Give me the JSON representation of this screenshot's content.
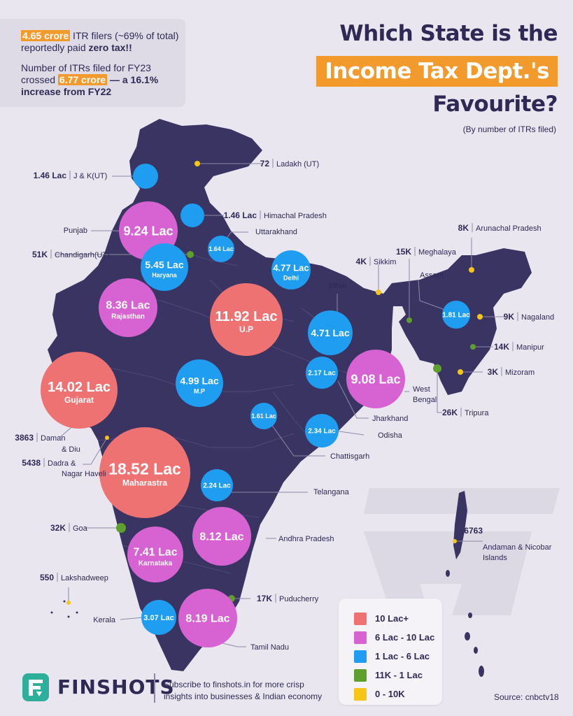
{
  "header": {
    "title_line1": "Which State is the",
    "title_line2": "Income Tax Dept.'s",
    "title_line3": "Favourite?",
    "subtitle": "(By number of ITRs filed)"
  },
  "info": {
    "fact1_highlight": "4.65 crore",
    "fact1_rest": " ITR filers (~69% of total)",
    "fact1_line2_prefix": "reportedly paid ",
    "fact1_line2_bold": "zero tax!!",
    "fact2_line1": "Number of ITRs filed for FY23",
    "fact2_line2_prefix": "crossed ",
    "fact2_highlight": "6.77 crore",
    "fact2_line2_suffix": " — a 16.1%",
    "fact2_line3": "increase from FY22"
  },
  "colors": {
    "cat1": "#ef7272",
    "cat2": "#d763d2",
    "cat3": "#1f9df0",
    "cat4": "#5e9f2e",
    "cat5": "#f5c518",
    "map": "#3a3462",
    "accent": "#f39a2c"
  },
  "legend": [
    {
      "label": "10 Lac+",
      "color": "#ef7272"
    },
    {
      "label": "6 Lac - 10 Lac",
      "color": "#d763d2"
    },
    {
      "label": "1 Lac - 6 Lac",
      "color": "#1f9df0"
    },
    {
      "label": "11K - 1 Lac",
      "color": "#5e9f2e"
    },
    {
      "label": "0 - 10K",
      "color": "#f5c518"
    }
  ],
  "bubbles": [
    {
      "value": "18.52 Lac",
      "name": "Maharastra",
      "color": "#ef7272"
    },
    {
      "value": "14.02 Lac",
      "name": "Gujarat",
      "color": "#ef7272"
    },
    {
      "value": "11.92 Lac",
      "name": "U.P",
      "color": "#ef7272"
    },
    {
      "value": "9.24 Lac",
      "name": "",
      "color": "#d763d2"
    },
    {
      "value": "9.08 Lac",
      "name": "",
      "color": "#d763d2"
    },
    {
      "value": "8.36 Lac",
      "name": "Rajasthan",
      "color": "#d763d2"
    },
    {
      "value": "8.19 Lac",
      "name": "",
      "color": "#d763d2"
    },
    {
      "value": "8.12 Lac",
      "name": "",
      "color": "#d763d2"
    },
    {
      "value": "7.41 Lac",
      "name": "Karnataka",
      "color": "#d763d2"
    },
    {
      "value": "5.45 Lac",
      "name": "Haryana",
      "color": "#1f9df0"
    },
    {
      "value": "4.99 Lac",
      "name": "M.P",
      "color": "#1f9df0"
    },
    {
      "value": "4.77 Lac",
      "name": "Delhi",
      "color": "#1f9df0"
    },
    {
      "value": "4.71 Lac",
      "name": "",
      "color": "#1f9df0"
    },
    {
      "value": "3.07 Lac",
      "name": "",
      "color": "#1f9df0"
    },
    {
      "value": "2.34 Lac",
      "name": "",
      "color": "#1f9df0"
    },
    {
      "value": "2.24 Lac",
      "name": "",
      "color": "#1f9df0"
    },
    {
      "value": "2.17 Lac",
      "name": "",
      "color": "#1f9df0"
    },
    {
      "value": "1.81 Lac",
      "name": "",
      "color": "#1f9df0"
    },
    {
      "value": "1.64 Lac",
      "name": "",
      "color": "#1f9df0"
    },
    {
      "value": "1.61 Lac",
      "name": "",
      "color": "#1f9df0"
    },
    {
      "value": "",
      "name": "",
      "color": "#1f9df0"
    },
    {
      "value": "",
      "name": "",
      "color": "#1f9df0"
    }
  ],
  "dots": [
    {
      "color": "#f5c518"
    },
    {
      "color": "#5e9f2e"
    },
    {
      "color": "#f5c518"
    },
    {
      "color": "#5e9f2e"
    },
    {
      "color": "#f5c518"
    },
    {
      "color": "#f5c518"
    },
    {
      "color": "#5e9f2e"
    },
    {
      "color": "#5e9f2e"
    },
    {
      "color": "#f5c518"
    },
    {
      "color": "#f5c518"
    },
    {
      "color": "#f5c518"
    },
    {
      "color": "#5e9f2e"
    },
    {
      "color": "#f5c518"
    },
    {
      "color": "#f5c518"
    },
    {
      "color": "#5e9f2e"
    },
    {
      "color": "#f5c518"
    },
    {
      "color": "#5e9f2e"
    }
  ],
  "labels": [
    {
      "value": "72",
      "name": "Ladakh (UT)"
    },
    {
      "value": "1.46 Lac",
      "name": "J & K(UT)"
    },
    {
      "value": "1.46 Lac",
      "name": "Himachal Pradesh"
    },
    {
      "value": "",
      "name": "Uttarakhand"
    },
    {
      "value": "",
      "name": "Punjab"
    },
    {
      "value": "51K",
      "name": "Chandigarh(UT)"
    },
    {
      "value": "8K",
      "name": "Arunachal Pradesh"
    },
    {
      "value": "15K",
      "name": "Meghalaya"
    },
    {
      "value": "4K",
      "name": "Sikkim"
    },
    {
      "value": "",
      "name": "Assam"
    },
    {
      "value": "",
      "name": "Bihar"
    },
    {
      "value": "9K",
      "name": "Nagaland"
    },
    {
      "value": "14K",
      "name": "Manipur"
    },
    {
      "value": "3K",
      "name": "Mizoram"
    },
    {
      "value": "26K",
      "name": "Tripura"
    },
    {
      "value": "",
      "name": "West"
    },
    {
      "value": "",
      "name": "Bengal"
    },
    {
      "value": "",
      "name": "Jharkhand"
    },
    {
      "value": "",
      "name": "Odisha"
    },
    {
      "value": "",
      "name": "Chattisgarh"
    },
    {
      "value": "3863",
      "name": "Daman"
    },
    {
      "value": "",
      "name": "& Diu"
    },
    {
      "value": "5438",
      "name": "Dadra &"
    },
    {
      "value": "",
      "name": "Nagar Haveli"
    },
    {
      "value": "",
      "name": "Telangana"
    },
    {
      "value": "32K",
      "name": "Goa"
    },
    {
      "value": "",
      "name": "Andhra Pradesh"
    },
    {
      "value": "6763",
      "name": ""
    },
    {
      "value": "",
      "name": "Andaman & Nicobar"
    },
    {
      "value": "",
      "name": "Islands"
    },
    {
      "value": "550",
      "name": "Lakshadweep"
    },
    {
      "value": "17K",
      "name": "Puducherry"
    },
    {
      "value": "",
      "name": "Kerala"
    },
    {
      "value": "",
      "name": "Tamil Nadu"
    }
  ],
  "footer": {
    "brand": "FINSHOTS",
    "subscribe_line1": "Subscribe to finshots.in for more crisp",
    "subscribe_line2": "insights into businesses & Indian economy",
    "source": "Source: cnbctv18"
  }
}
